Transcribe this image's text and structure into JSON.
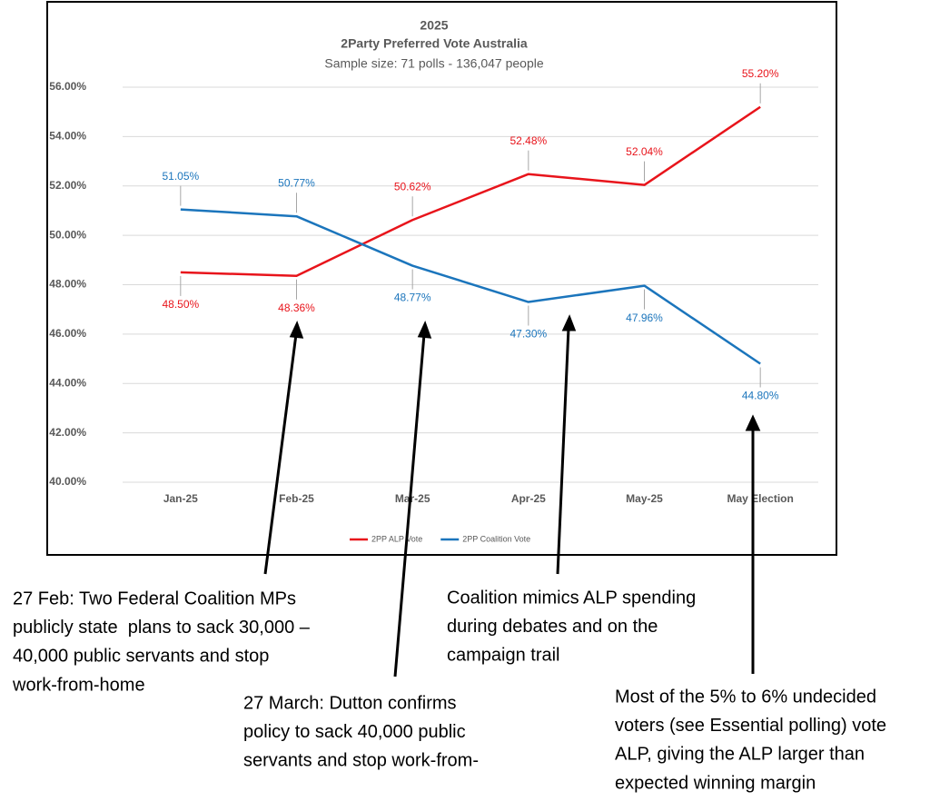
{
  "chart_data": {
    "type": "line",
    "title": "2025",
    "subtitle": "2Party Preferred Vote Australia",
    "sample_note": "Sample size: 71 polls - 136,047 people",
    "categories": [
      "Jan-25",
      "Feb-25",
      "Mar-25",
      "Apr-25",
      "May-25",
      "May Election"
    ],
    "series": [
      {
        "name": "2PP ALP Vote",
        "color": "#e8141b",
        "values": [
          48.5,
          48.36,
          50.62,
          52.48,
          52.04,
          55.2
        ],
        "value_labels": [
          "48.50%",
          "48.36%",
          "50.62%",
          "52.48%",
          "52.04%",
          "55.20%"
        ]
      },
      {
        "name": "2PP Coalition Vote",
        "color": "#1b75bc",
        "values": [
          51.05,
          50.77,
          48.77,
          47.3,
          47.96,
          44.8
        ],
        "value_labels": [
          "51.05%",
          "50.77%",
          "48.77%",
          "47.30%",
          "47.96%",
          "44.80%"
        ]
      }
    ],
    "ylim": [
      40,
      56
    ],
    "yticks": [
      {
        "value": 40,
        "label": "40.00%"
      },
      {
        "value": 42,
        "label": "42.00%"
      },
      {
        "value": 44,
        "label": "44.00%"
      },
      {
        "value": 46,
        "label": "46.00%"
      },
      {
        "value": 48,
        "label": "48.00%"
      },
      {
        "value": 50,
        "label": "50.00%"
      },
      {
        "value": 52,
        "label": "52.00%"
      },
      {
        "value": 54,
        "label": "54.00%"
      },
      {
        "value": 56,
        "label": "56.00%"
      }
    ],
    "grid": true,
    "legend": "bottom",
    "annotations": [
      {
        "lines": [
          "27 Feb: Two Federal Coalition MPs",
          "publicly state  plans to sack 30,000 –",
          "40,000 public servants and stop",
          "work-from-home"
        ]
      },
      {
        "lines": [
          "27 March: Dutton confirms",
          "policy to sack 40,000 public",
          "servants and stop work-from-"
        ]
      },
      {
        "lines": [
          "Coalition mimics ALP spending",
          "during debates and on the",
          "campaign trail"
        ]
      },
      {
        "lines": [
          "Most of the 5% to 6% undecided",
          "voters (see Essential polling) vote",
          "ALP, giving the ALP larger than",
          "expected winning margin"
        ]
      }
    ]
  }
}
